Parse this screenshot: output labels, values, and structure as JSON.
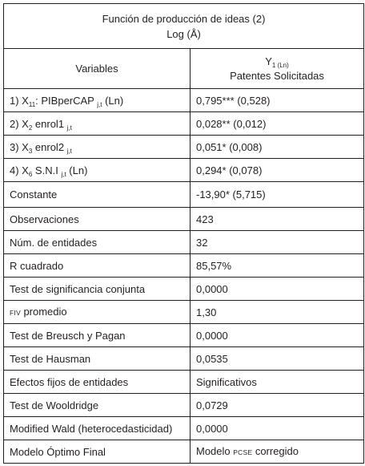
{
  "title": {
    "line1": "Función de producción de ideas (2)",
    "line2": "Log (Å)"
  },
  "header": {
    "variables": "Variables",
    "y_symbol": "Y",
    "y_sub": "1 (Ln)",
    "y_desc": "Patentes Solicitadas"
  },
  "var_rows": [
    {
      "prefix": "1) X",
      "sub": "11",
      "mid": ": PIBperCAP",
      "sub2": "j,t",
      "suffix": " (Ln)",
      "value": "0,795*** (0,528)"
    },
    {
      "prefix": "2) X",
      "sub": "2",
      "mid": " enrol1",
      "sub2": "j,t",
      "suffix": "",
      "value": "0,028** (0,012)"
    },
    {
      "prefix": "3) X",
      "sub": "3",
      "mid": " enrol2",
      "sub2": "j,t",
      "suffix": "",
      "value": "0,051* (0,008)"
    },
    {
      "prefix": "4) X",
      "sub": "6",
      "mid": " S.N.I",
      "sub2": "j,t",
      "suffix": " (Ln)",
      "value": "0,294* (0,078)"
    }
  ],
  "rows": [
    {
      "label": "Constante",
      "value": "-13,90* (5,715)"
    },
    {
      "label": "Observaciones",
      "value": "423"
    },
    {
      "label": "Núm. de entidades",
      "value": "32"
    },
    {
      "label": "R cuadrado",
      "value": "85,57%"
    },
    {
      "label": "Test de significancia conjunta",
      "value": "0,0000"
    },
    {
      "label_small": "FIV",
      "label_rest": " promedio",
      "value": "1,30"
    },
    {
      "label": "Test de Breusch y Pagan",
      "value": "0,0000"
    },
    {
      "label": "Test de Hausman",
      "value": "0,0535"
    },
    {
      "label": "Efectos fijos de entidades",
      "value": "Significativos"
    },
    {
      "label": "Test de Wooldridge",
      "value": "0,0729"
    },
    {
      "label": "Modified Wald (heterocedasticidad)",
      "value": "0,0000"
    },
    {
      "label": "Modelo Óptimo Final",
      "value_pre": "Modelo ",
      "value_small": "PCSE",
      "value_post": " corregido"
    }
  ]
}
